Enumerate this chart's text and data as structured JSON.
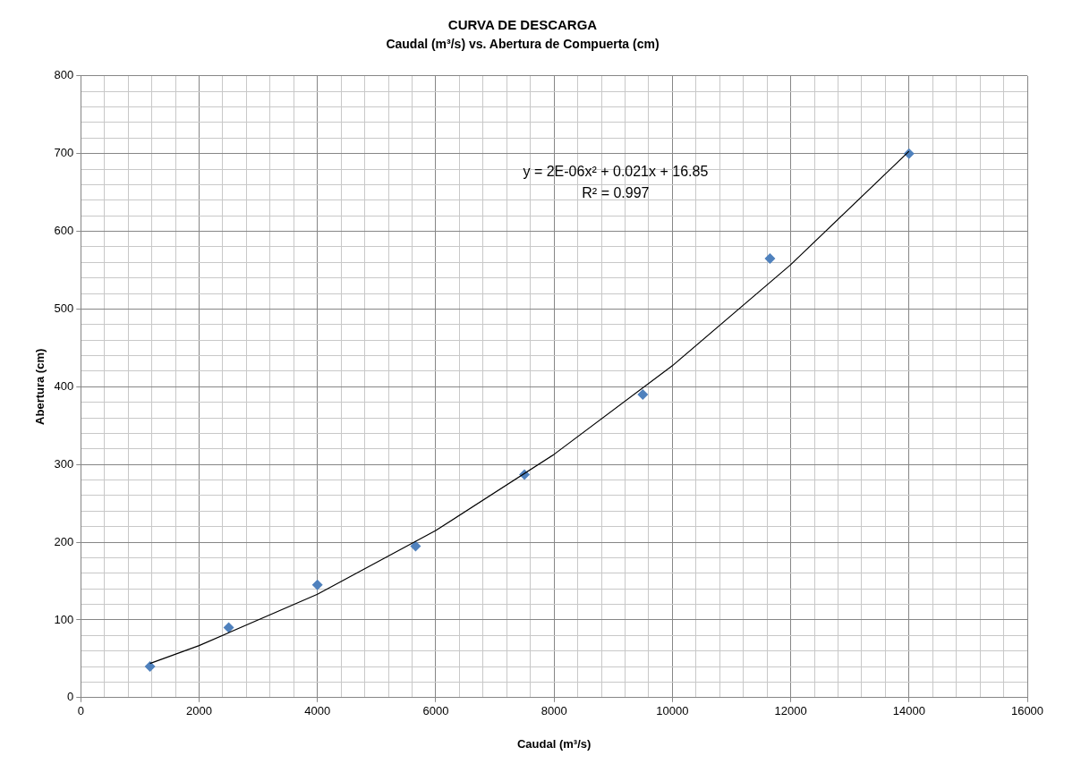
{
  "chart_data": {
    "type": "scatter",
    "title": "CURVA DE DESCARGA",
    "subtitle": "Caudal (m³/s) vs. Abertura de Compuerta (cm)",
    "xlabel": "Caudal (m³/s)",
    "ylabel": "Abertura (cm)",
    "annotations": [
      "y = 2E-06x² + 0.021x + 16.85",
      "R² = 0.997"
    ],
    "series": [
      {
        "type": "scatter",
        "color": "#4f81bd",
        "marker": "diamond",
        "x": [
          1170,
          2500,
          4000,
          5660,
          7500,
          9500,
          11650,
          14000
        ],
        "values": [
          40,
          90,
          145,
          195,
          287,
          390,
          565,
          700
        ]
      },
      {
        "type": "line",
        "color": "#000000",
        "marker": "none",
        "line_style": "solid",
        "x": [
          1170,
          2000,
          4000,
          6000,
          8000,
          10000,
          12000,
          14000
        ],
        "values": [
          44,
          67,
          133,
          215,
          313,
          427,
          557,
          703
        ]
      }
    ],
    "xlim": [
      0,
      16000
    ],
    "ylim": [
      0,
      800
    ],
    "xticks": [
      0,
      {
        "value": 400,
        "label": null
      },
      {
        "value": 800,
        "label": null
      },
      {
        "value": 1200,
        "label": null
      },
      {
        "value": 1600,
        "label": null
      },
      2000,
      {
        "value": 2400,
        "label": null
      },
      {
        "value": 2800,
        "label": null
      },
      {
        "value": 3200,
        "label": null
      },
      {
        "value": 3600,
        "label": null
      },
      4000,
      {
        "value": 4400,
        "label": null
      },
      {
        "value": 4800,
        "label": null
      },
      {
        "value": 5200,
        "label": null
      },
      {
        "value": 5600,
        "label": null
      },
      6000,
      {
        "value": 6400,
        "label": null
      },
      {
        "value": 6800,
        "label": null
      },
      {
        "value": 7200,
        "label": null
      },
      {
        "value": 7600,
        "label": null
      },
      8000,
      {
        "value": 8400,
        "label": null
      },
      {
        "value": 8800,
        "label": null
      },
      {
        "value": 9200,
        "label": null
      },
      {
        "value": 9600,
        "label": null
      },
      10000,
      {
        "value": 10400,
        "label": null
      },
      {
        "value": 10800,
        "label": null
      },
      {
        "value": 11200,
        "label": null
      },
      {
        "value": 11600,
        "label": null
      },
      12000,
      {
        "value": 12400,
        "label": null
      },
      {
        "value": 12800,
        "label": null
      },
      {
        "value": 13200,
        "label": null
      },
      {
        "value": 13600,
        "label": null
      },
      14000,
      {
        "value": 14400,
        "label": null
      },
      {
        "value": 14800,
        "label": null
      },
      {
        "value": 15200,
        "label": null
      },
      {
        "value": 15600,
        "label": null
      },
      16000
    ],
    "yticks": [
      0,
      {
        "value": 20,
        "label": null
      },
      {
        "value": 40,
        "label": null
      },
      {
        "value": 60,
        "label": null
      },
      {
        "value": 80,
        "label": null
      },
      100,
      {
        "value": 120,
        "label": null
      },
      {
        "value": 140,
        "label": null
      },
      {
        "value": 160,
        "label": null
      },
      {
        "value": 180,
        "label": null
      },
      200,
      {
        "value": 220,
        "label": null
      },
      {
        "value": 240,
        "label": null
      },
      {
        "value": 260,
        "label": null
      },
      {
        "value": 280,
        "label": null
      },
      300,
      {
        "value": 320,
        "label": null
      },
      {
        "value": 340,
        "label": null
      },
      {
        "value": 360,
        "label": null
      },
      {
        "value": 380,
        "label": null
      },
      400,
      {
        "value": 420,
        "label": null
      },
      {
        "value": 440,
        "label": null
      },
      {
        "value": 460,
        "label": null
      },
      {
        "value": 480,
        "label": null
      },
      500,
      {
        "value": 520,
        "label": null
      },
      {
        "value": 540,
        "label": null
      },
      {
        "value": 560,
        "label": null
      },
      {
        "value": 580,
        "label": null
      },
      600,
      {
        "value": 620,
        "label": null
      },
      {
        "value": 640,
        "label": null
      },
      {
        "value": 660,
        "label": null
      },
      {
        "value": 680,
        "label": null
      },
      700,
      {
        "value": 720,
        "label": null
      },
      {
        "value": 740,
        "label": null
      },
      {
        "value": 760,
        "label": null
      },
      {
        "value": 780,
        "label": null
      },
      800
    ],
    "grid": true,
    "legend": false
  }
}
